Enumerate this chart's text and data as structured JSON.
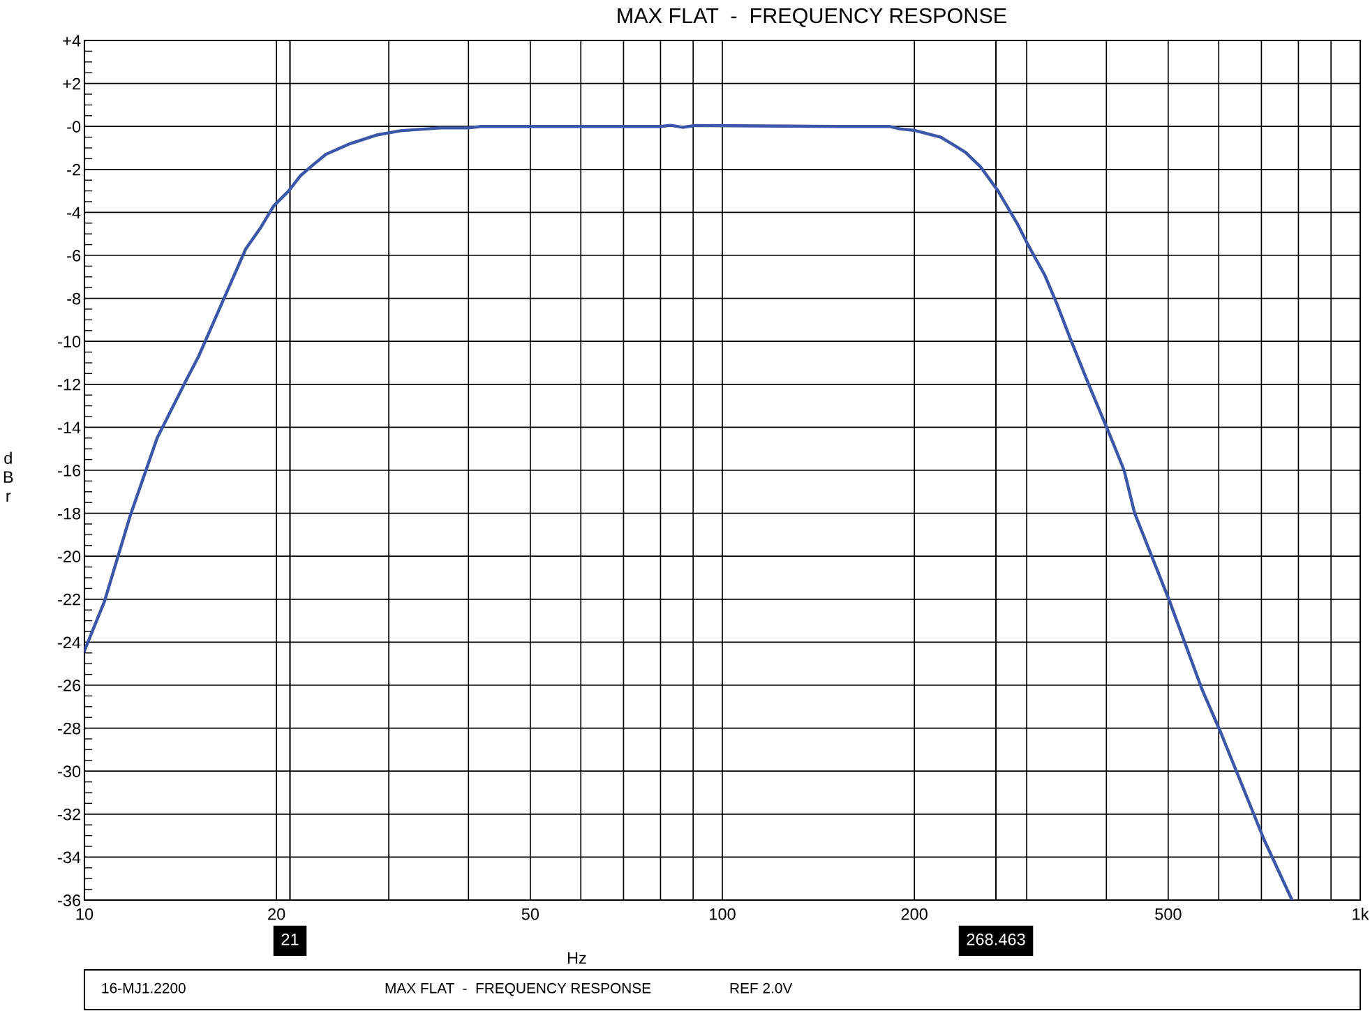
{
  "chart_data": {
    "type": "line",
    "title": "MAX FLAT  -  FREQUENCY RESPONSE",
    "xlabel": "Hz",
    "ylabel": "dBr",
    "log": "x",
    "grid": true,
    "line_style": "solid",
    "xlim": [
      10,
      1000
    ],
    "xticks": [
      10,
      20,
      50,
      100,
      200,
      500,
      {
        "value": 1000,
        "label": "1k"
      }
    ],
    "ylim": [
      -36,
      4
    ],
    "yticks": [
      {
        "value": 4,
        "label": "+4"
      },
      {
        "value": 2,
        "label": "+2"
      },
      {
        "value": 0,
        "label": "-0"
      },
      -2,
      -4,
      -6,
      -8,
      -10,
      -12,
      -14,
      -16,
      -18,
      -20,
      -22,
      -24,
      -26,
      -28,
      -30,
      -32,
      -34,
      -36
    ],
    "series": [
      {
        "color": "#3a57a8",
        "x": [
          10,
          10.75,
          11.8,
          13.0,
          14.5,
          15.1,
          16.55,
          17.9,
          18.9,
          19.8,
          20.9,
          21.8,
          22.8,
          23.9,
          26.1,
          28.7,
          31.3,
          36.1,
          40.0,
          41.8,
          80.1,
          83,
          86.6,
          90.6,
          151.5,
          182.7,
          189.7,
          200.6,
          220,
          228.7,
          240.4,
          254.3,
          270.5,
          289.7,
          302.6,
          320,
          334,
          351.4,
          376.4,
          405.5,
          426.4,
          443,
          502.6,
          565,
          604.4,
          707,
          781.9
        ],
        "values": [
          -24.4,
          -22.1,
          -18.1,
          -14.5,
          -11.7,
          -10.7,
          -8.0,
          -5.7,
          -4.7,
          -3.7,
          -3.0,
          -2.3,
          -1.8,
          -1.3,
          -0.8,
          -0.4,
          -0.2,
          -0.07,
          -0.07,
          0,
          0,
          0.05,
          -0.04,
          0.04,
          0,
          0,
          -0.11,
          -0.19,
          -0.5,
          -0.8,
          -1.2,
          -1.9,
          -3.0,
          -4.5,
          -5.6,
          -6.9,
          -8.2,
          -9.9,
          -12.1,
          -14.4,
          -16.0,
          -18.0,
          -22.1,
          -26.2,
          -28.2,
          -33.2,
          -36
        ]
      }
    ],
    "ref_lines": [
      {
        "axis": "x",
        "value": 21,
        "label": "21"
      },
      {
        "axis": "x",
        "value": 268.463,
        "label": "268.463"
      }
    ],
    "annotations": [
      "16-MJ1.2200",
      "MAX FLAT  -  FREQUENCY RESPONSE",
      "REF 2.0V"
    ]
  }
}
